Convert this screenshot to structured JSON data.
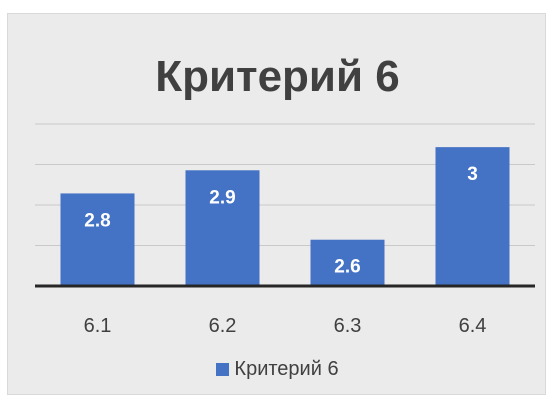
{
  "chart_data": {
    "type": "bar",
    "title": "Критерий 6",
    "categories": [
      "6.1",
      "6.2",
      "6.3",
      "6.4"
    ],
    "series": [
      {
        "name": "Критерий 6",
        "values": [
          2.8,
          2.9,
          2.6,
          3
        ],
        "color": "#4472c4"
      }
    ],
    "data_labels": [
      "2.8",
      "2.9",
      "2.6",
      "3"
    ],
    "ylim": [
      2.4,
      3.1
    ],
    "grid": true,
    "legend": "bottom",
    "xlabel": "",
    "ylabel": ""
  }
}
